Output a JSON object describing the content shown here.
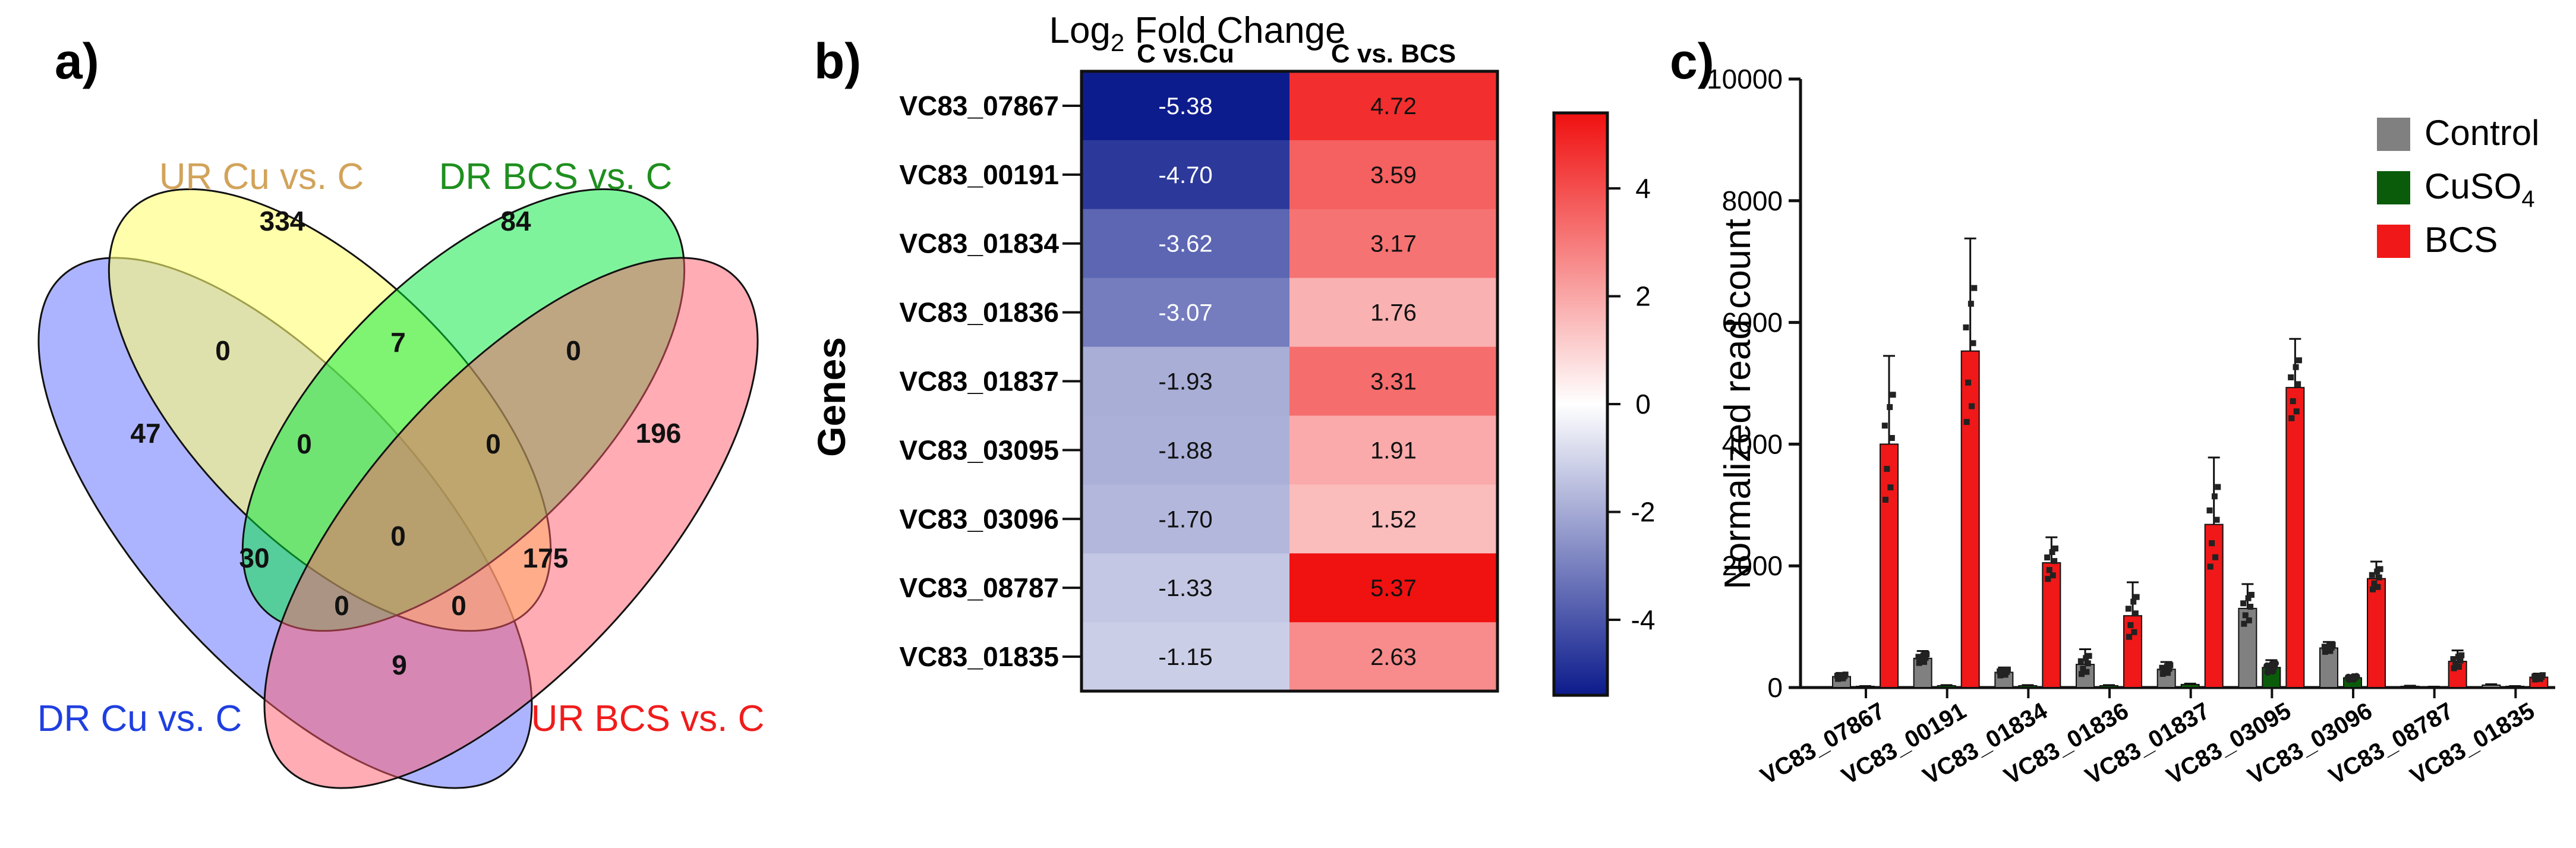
{
  "chart_data": [
    {
      "type": "venn",
      "panel_label": "a)",
      "sets": [
        {
          "name": "DR Cu vs. C",
          "color": "#1f3fe0"
        },
        {
          "name": "UR Cu vs. C",
          "color": "#d2a35a"
        },
        {
          "name": "DR BCS vs. C",
          "color": "#1e8f1e"
        },
        {
          "name": "UR BCS vs. C",
          "color": "#f01c1c"
        }
      ],
      "regions": [
        {
          "sets": [
            "DR Cu vs. C"
          ],
          "count": "47"
        },
        {
          "sets": [
            "UR Cu vs. C"
          ],
          "count": "334"
        },
        {
          "sets": [
            "DR BCS vs. C"
          ],
          "count": "84"
        },
        {
          "sets": [
            "UR BCS vs. C"
          ],
          "count": "196"
        },
        {
          "sets": [
            "DR Cu vs. C",
            "UR Cu vs. C"
          ],
          "count": "0"
        },
        {
          "sets": [
            "UR Cu vs. C",
            "DR BCS vs. C"
          ],
          "count": "7"
        },
        {
          "sets": [
            "DR BCS vs. C",
            "UR BCS vs. C"
          ],
          "count": "0"
        },
        {
          "sets": [
            "DR Cu vs. C",
            "UR Cu vs. C",
            "DR BCS vs. C"
          ],
          "count": "0"
        },
        {
          "sets": [
            "UR Cu vs. C",
            "DR BCS vs. C",
            "UR BCS vs. C"
          ],
          "count": "0"
        },
        {
          "sets": [
            "DR Cu vs. C",
            "DR BCS vs. C"
          ],
          "count": "30"
        },
        {
          "sets": [
            "DR Cu vs. C",
            "UR Cu vs. C",
            "DR BCS vs. C",
            "UR BCS vs. C"
          ],
          "count": "0"
        },
        {
          "sets": [
            "UR Cu vs. C",
            "UR BCS vs. C"
          ],
          "count": "175"
        },
        {
          "sets": [
            "DR Cu vs. C",
            "UR Cu vs. C",
            "UR BCS vs. C"
          ],
          "count": "0"
        },
        {
          "sets": [
            "DR Cu vs. C",
            "DR BCS vs. C",
            "UR BCS vs. C"
          ],
          "count": "0"
        },
        {
          "sets": [
            "DR Cu vs. C",
            "UR BCS vs. C"
          ],
          "count": "9"
        }
      ]
    },
    {
      "type": "heatmap",
      "panel_label": "b)",
      "title": "Log",
      "title_sub": "2",
      "title_rest": " Fold Change",
      "ylabel": "Genes",
      "columns": [
        "C vs.Cu",
        "C vs. BCS"
      ],
      "rows": [
        "VC83_07867",
        "VC83_00191",
        "VC83_01834",
        "VC83_01836",
        "VC83_01837",
        "VC83_03095",
        "VC83_03096",
        "VC83_08787",
        "VC83_01835"
      ],
      "values": [
        [
          -5.38,
          4.72
        ],
        [
          -4.7,
          3.59
        ],
        [
          -3.62,
          3.17
        ],
        [
          -3.07,
          1.76
        ],
        [
          -1.93,
          3.31
        ],
        [
          -1.88,
          1.91
        ],
        [
          -1.7,
          1.52
        ],
        [
          -1.33,
          5.37
        ],
        [
          -1.15,
          2.63
        ]
      ],
      "value_labels": [
        [
          "-5.38",
          "4.72"
        ],
        [
          "-4.70",
          "3.59"
        ],
        [
          "-3.62",
          "3.17"
        ],
        [
          "-3.07",
          "1.76"
        ],
        [
          "-1.93",
          "3.31"
        ],
        [
          "-1.88",
          "1.91"
        ],
        [
          "-1.70",
          "1.52"
        ],
        [
          "-1.33",
          "5.37"
        ],
        [
          "-1.15",
          "2.63"
        ]
      ],
      "colorbar": {
        "range": [
          -5.4,
          5.4
        ],
        "ticks": [
          4,
          2,
          0,
          -2,
          -4
        ],
        "tick_labels": [
          "4",
          "2",
          "0",
          "-2",
          "-4"
        ],
        "low_color": "#0c1b8c",
        "mid_color": "#ffffff",
        "high_color": "#f01010"
      }
    },
    {
      "type": "bar",
      "panel_label": "c)",
      "ylabel": "Normalized read count",
      "ylim": [
        0,
        10000
      ],
      "yticks": [
        0,
        2000,
        4000,
        6000,
        8000,
        10000
      ],
      "ytick_labels": [
        "0",
        "2000",
        "4000",
        "6000",
        "8000",
        "10000"
      ],
      "categories": [
        "VC83_07867",
        "VC83_00191",
        "VC83_01834",
        "VC83_01836",
        "VC83_01837",
        "VC83_03095",
        "VC83_03096",
        "VC83_08787",
        "VC83_01835"
      ],
      "legend": {
        "placement": "top-right"
      },
      "series": [
        {
          "name": "Control",
          "color": "#808080",
          "values": [
            180,
            480,
            250,
            380,
            300,
            1300,
            650,
            20,
            40
          ],
          "errors": [
            60,
            120,
            80,
            250,
            120,
            400,
            100,
            10,
            15
          ]
        },
        {
          "name": "CuSO4",
          "name_main": "CuSO",
          "name_sub": "4",
          "color": "#0a5c0a",
          "values": [
            20,
            30,
            30,
            30,
            50,
            330,
            160,
            10,
            20
          ],
          "errors": [
            5,
            10,
            10,
            10,
            15,
            120,
            40,
            5,
            5
          ]
        },
        {
          "name": "BCS",
          "color": "#f01818",
          "values": [
            4000,
            5530,
            2050,
            1180,
            2680,
            4930,
            1790,
            430,
            170
          ],
          "errors": [
            1450,
            1850,
            420,
            550,
            1100,
            800,
            280,
            180,
            60
          ]
        }
      ]
    }
  ]
}
